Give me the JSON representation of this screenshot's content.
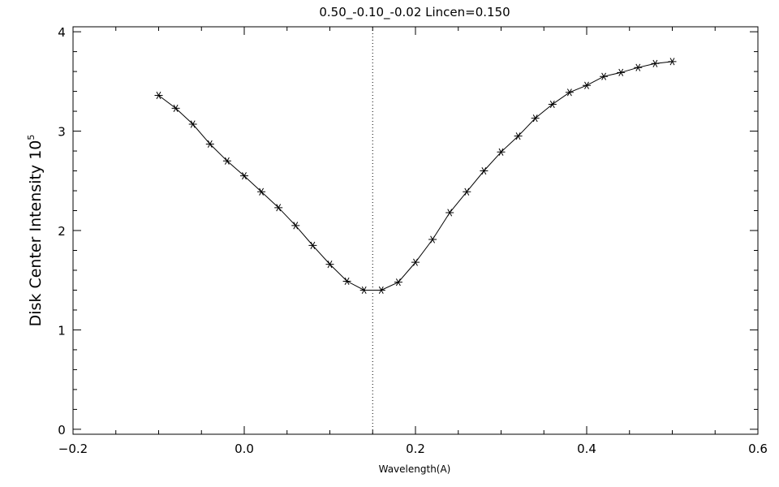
{
  "chart_data": {
    "type": "line",
    "title": "0.50_-0.10_-0.02   Lincen=0.150",
    "xlabel": "Wavelength(A)",
    "ylabel": "Disk Center Intensity 10",
    "ylabel_superscript": "5",
    "xlim": [
      -0.2,
      0.6
    ],
    "ylim": [
      -0.05,
      4.05
    ],
    "x_ticks": [
      "−0.2",
      "0.0",
      "0.2",
      "0.4",
      "0.6"
    ],
    "x_tick_values": [
      -0.2,
      0.0,
      0.2,
      0.4,
      0.6
    ],
    "y_ticks": [
      "0",
      "1",
      "2",
      "3",
      "4"
    ],
    "y_tick_values": [
      0,
      1,
      2,
      3,
      4
    ],
    "grid": false,
    "line_center": 0.15,
    "marker": "asterisk",
    "series": [
      {
        "x": [
          -0.1,
          -0.08,
          -0.06,
          -0.04,
          -0.02,
          0.0,
          0.02,
          0.04,
          0.06,
          0.08,
          0.1,
          0.12,
          0.14,
          0.16,
          0.18,
          0.2,
          0.22,
          0.24,
          0.26,
          0.28,
          0.3,
          0.32,
          0.34,
          0.36,
          0.38,
          0.4,
          0.42,
          0.44,
          0.46,
          0.48,
          0.5
        ],
        "y": [
          3.36,
          3.23,
          3.07,
          2.87,
          2.7,
          2.55,
          2.39,
          2.23,
          2.05,
          1.85,
          1.66,
          1.49,
          1.4,
          1.4,
          1.48,
          1.68,
          1.91,
          2.18,
          2.39,
          2.6,
          2.79,
          2.95,
          3.13,
          3.27,
          3.39,
          3.46,
          3.55,
          3.59,
          3.64,
          3.68,
          3.7
        ]
      }
    ]
  }
}
